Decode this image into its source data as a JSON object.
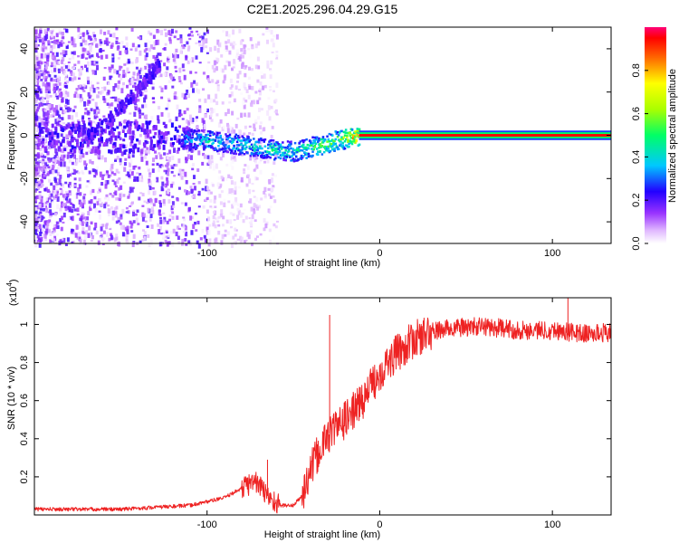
{
  "title": "C2E1.2025.296.04.29.G15",
  "colors": {
    "snr_line": "#ee2222",
    "track": "#ff5500",
    "axis": "#000000"
  },
  "chart_data": [
    {
      "type": "heatmap",
      "name": "spectrogram",
      "xlabel": "Height of straight line (km)",
      "ylabel": "Frequency (Hz)",
      "xlim": [
        -200,
        134
      ],
      "ylim": [
        -50,
        50
      ],
      "xticks": [
        -100,
        0,
        100
      ],
      "yticks": [
        -40,
        -20,
        0,
        20,
        40
      ],
      "track": {
        "description_points_x": [
          -115,
          -100,
          -80,
          -65,
          -50,
          -40,
          -30,
          -20,
          -12,
          0,
          50,
          100,
          134
        ],
        "description_points_y": [
          -1,
          -2,
          -4,
          -6,
          -7,
          -5,
          -3,
          -1,
          0,
          0,
          0,
          0,
          0
        ],
        "amplitude": [
          0.35,
          0.45,
          0.45,
          0.5,
          0.5,
          0.55,
          0.6,
          0.7,
          0.95,
          0.95,
          0.95,
          0.95,
          0.95
        ]
      },
      "branch": {
        "x": [
          -170,
          -155,
          -140,
          -128
        ],
        "y": [
          0,
          10,
          22,
          34
        ]
      },
      "colorbar": {
        "label": "Normalized spectral amplitude",
        "ticks": [
          "0.0",
          "0.2",
          "0.4",
          "0.6",
          "0.8"
        ],
        "range": [
          0,
          1
        ]
      }
    },
    {
      "type": "line",
      "name": "snr",
      "xlabel": "Height of straight line (km)",
      "ylabel": "SNR (10 * v/v)",
      "multiplier": "(x10",
      "multiplier_exp": "4",
      "multiplier_close": ")",
      "xlim": [
        -200,
        134
      ],
      "ylim": [
        0,
        1.14
      ],
      "xticks": [
        -100,
        0,
        100
      ],
      "yticks": [
        0.2,
        0.4,
        0.6,
        0.8,
        1.0
      ],
      "ytick_labels": [
        "0.2",
        "0.4",
        "0.6",
        "0.8",
        "1"
      ],
      "trend_x": [
        -200,
        -150,
        -110,
        -90,
        -80,
        -72,
        -65,
        -58,
        -50,
        -45,
        -38,
        -30,
        -20,
        -10,
        0,
        10,
        20,
        30,
        40,
        60,
        80,
        100,
        120,
        134
      ],
      "trend_y": [
        0.03,
        0.03,
        0.05,
        0.09,
        0.14,
        0.18,
        0.1,
        0.05,
        0.05,
        0.1,
        0.28,
        0.42,
        0.5,
        0.6,
        0.75,
        0.85,
        0.92,
        0.96,
        0.98,
        0.99,
        0.97,
        0.97,
        0.95,
        0.96
      ],
      "spikes": [
        {
          "x": -29,
          "y": 1.05
        },
        {
          "x": -65,
          "y": 0.29
        },
        {
          "x": 109,
          "y": 1.14
        }
      ]
    }
  ]
}
